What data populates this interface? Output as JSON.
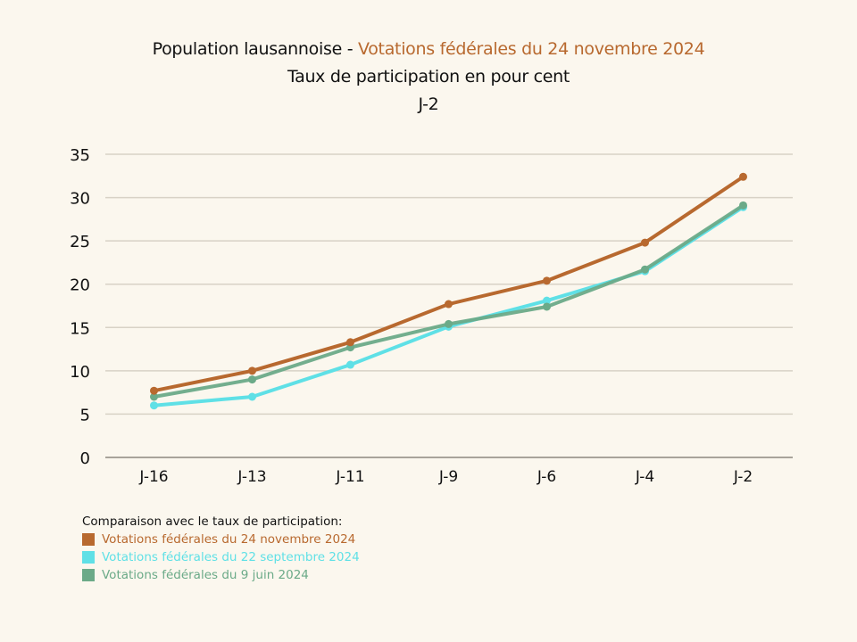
{
  "title": {
    "prefix": "Population lausannoise - ",
    "highlight": "Votations fédérales du 24 novembre 2024",
    "subtitle": "Taux de participation en pour cent",
    "day": "J-2"
  },
  "colors": {
    "background": "#fbf7ee",
    "accent": "#b8692f",
    "grid": "#d8d2c6",
    "axis": "#a8a39a"
  },
  "legend": {
    "title": "Comparaison avec le taux de participation:",
    "items": [
      {
        "label": "Votations fédérales du 24 novembre 2024",
        "color": "#b8692f"
      },
      {
        "label": "Votations fédérales du 22 septembre 2024",
        "color": "#5fe0e6"
      },
      {
        "label": "Votations fédérales du 9 juin 2024",
        "color": "#6baa88"
      }
    ]
  },
  "chart_data": {
    "type": "line",
    "title": "Population lausannoise - Votations fédérales du 24 novembre 2024",
    "subtitle": "Taux de participation en pour cent — J-2",
    "xlabel": "",
    "ylabel": "",
    "categories": [
      "J-16",
      "J-13",
      "J-11",
      "J-9",
      "J-6",
      "J-4",
      "J-2"
    ],
    "ylim": [
      0,
      35
    ],
    "yticks": [
      0,
      5,
      10,
      15,
      20,
      25,
      30,
      35
    ],
    "grid": true,
    "legend_position": "bottom-left",
    "series": [
      {
        "name": "Votations fédérales du 24 novembre 2024",
        "color": "#b8692f",
        "values": [
          7.7,
          10.0,
          13.3,
          17.7,
          20.4,
          24.8,
          32.4
        ]
      },
      {
        "name": "Votations fédérales du 22 septembre 2024",
        "color": "#5fe0e6",
        "values": [
          6.0,
          7.0,
          10.7,
          15.1,
          18.1,
          21.5,
          28.9
        ]
      },
      {
        "name": "Votations fédérales du 9 juin 2024",
        "color": "#6baa88",
        "values": [
          7.0,
          9.0,
          12.7,
          15.4,
          17.4,
          21.7,
          29.1
        ]
      }
    ]
  }
}
